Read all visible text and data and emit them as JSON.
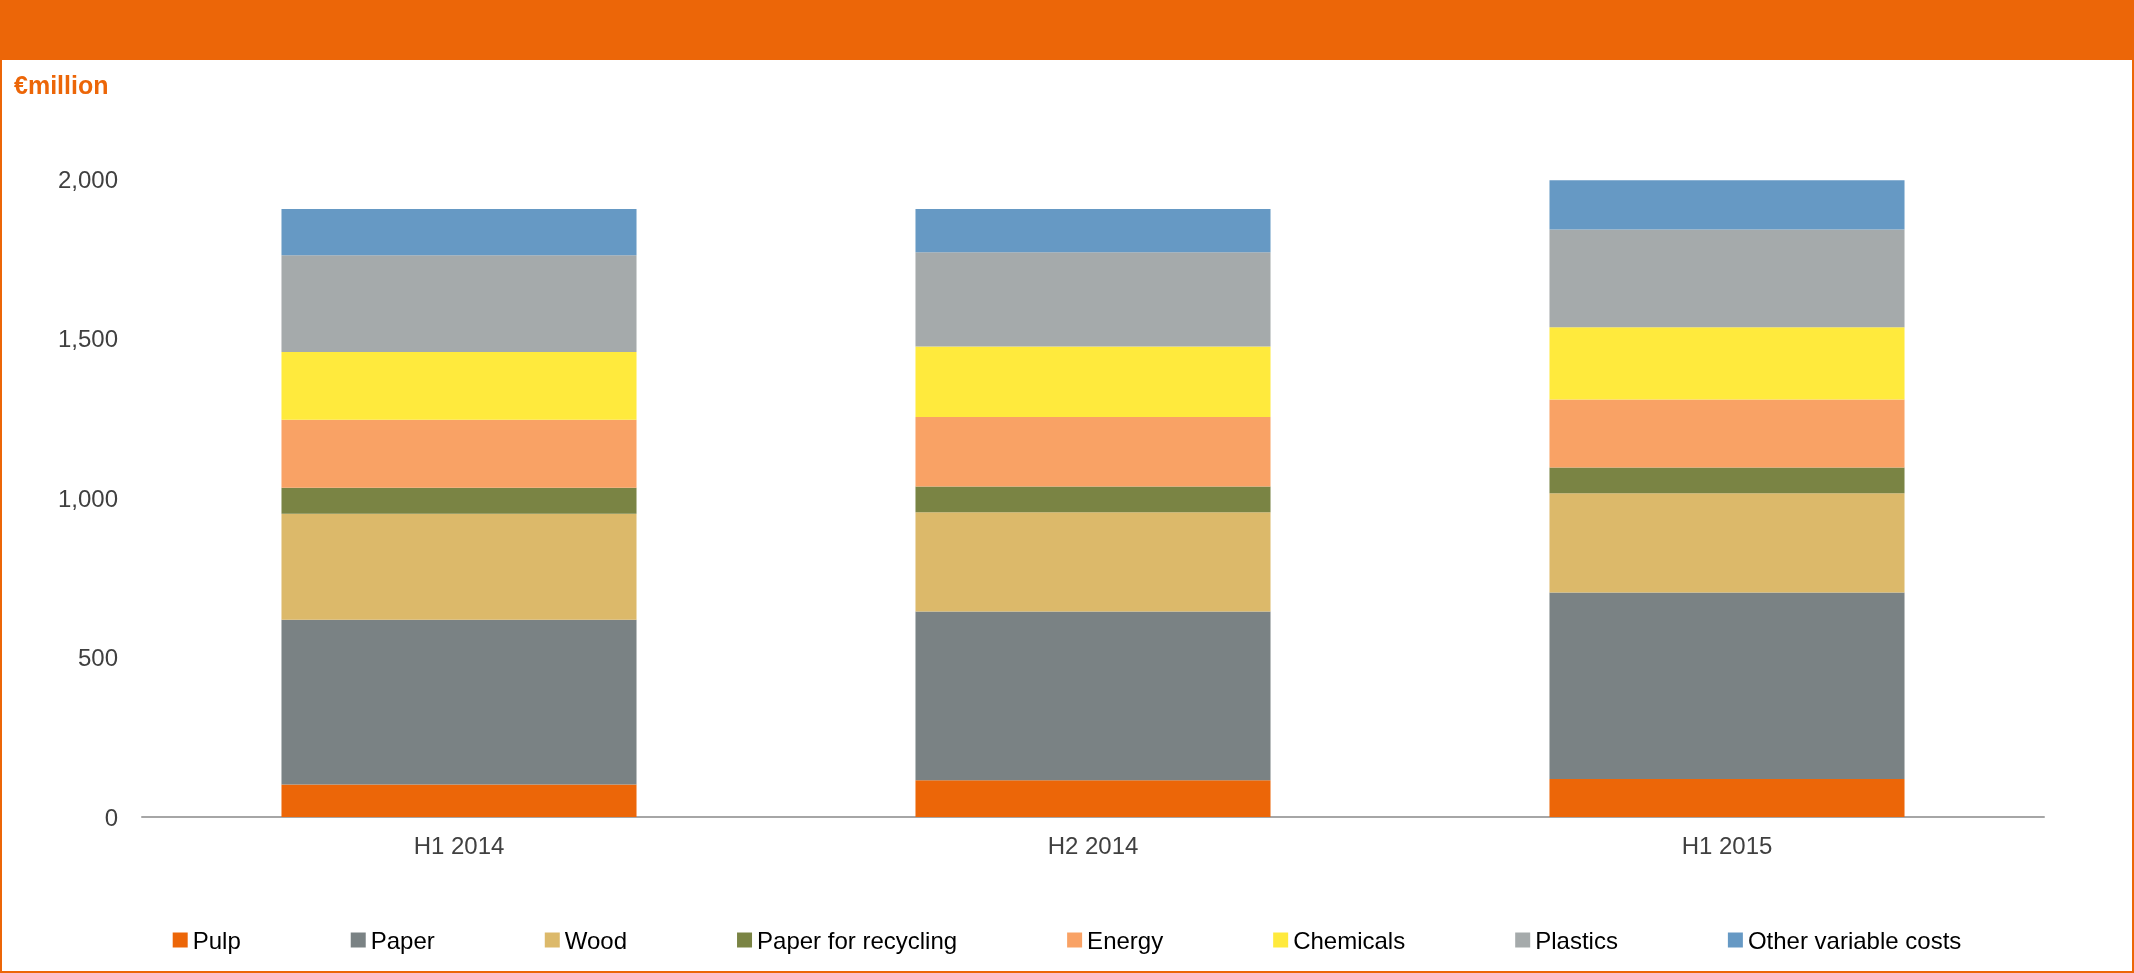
{
  "chart_data": {
    "type": "bar",
    "ylabel": "€million",
    "stacked": true,
    "grid": false,
    "legend": "bottom",
    "categories": [
      "H1 2014",
      "H2 2014",
      "H1 2015"
    ],
    "ylim": [
      0,
      2000
    ],
    "yticks": [
      0,
      {
        "value": 500,
        "label": "500"
      },
      {
        "value": 1000,
        "label": "1,000"
      },
      {
        "value": 1500,
        "label": "1,500"
      },
      {
        "value": 2000,
        "label": "2,000"
      }
    ],
    "series": [
      {
        "name": "Pulp",
        "color": "#ec6608",
        "values": [
          102,
          115,
          119
        ]
      },
      {
        "name": "Paper",
        "color": "#7a8284",
        "values": [
          516,
          529,
          585
        ]
      },
      {
        "name": "Wood",
        "color": "#dcb96a",
        "values": [
          333,
          311,
          311
        ]
      },
      {
        "name": "Paper for recycling",
        "color": "#7a8444",
        "values": [
          81,
          81,
          81
        ]
      },
      {
        "name": "Energy",
        "color": "#f9a265",
        "values": [
          213,
          218,
          213
        ]
      },
      {
        "name": "Chemicals",
        "color": "#ffea3d",
        "values": [
          213,
          221,
          226
        ]
      },
      {
        "name": "Plastics",
        "color": "#a5aaab",
        "values": [
          303,
          295,
          307
        ]
      },
      {
        "name": "Other variable costs",
        "color": "#6699c4",
        "values": [
          145,
          136,
          154
        ]
      }
    ]
  }
}
